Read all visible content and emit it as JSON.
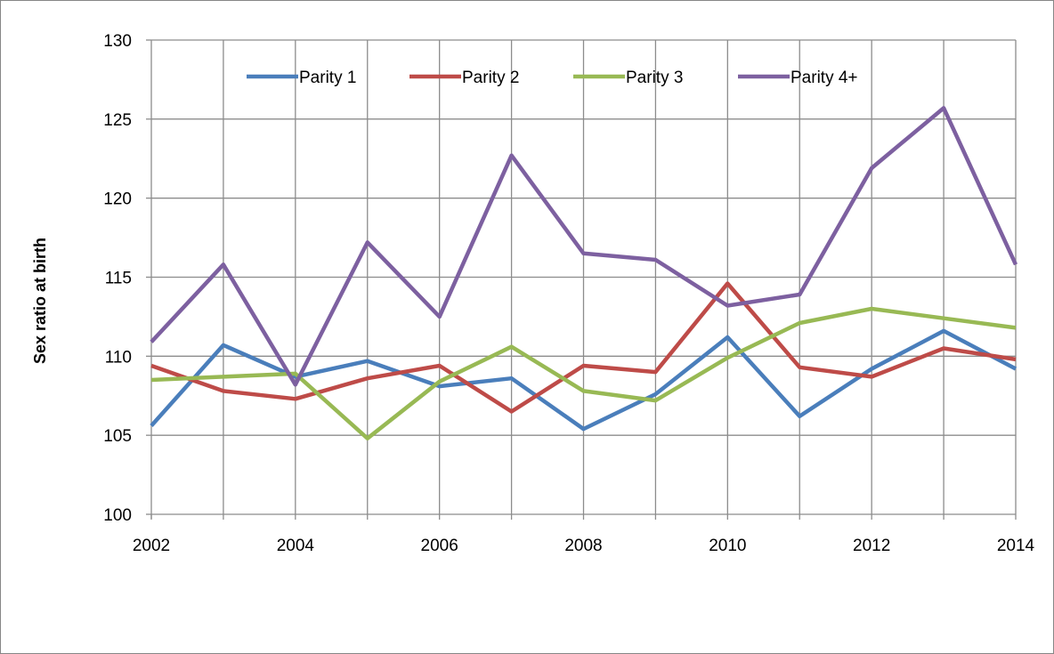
{
  "chart_data": {
    "type": "line",
    "title": "",
    "xlabel": "",
    "ylabel": "Sex ratio at birth",
    "x": [
      2002,
      2003,
      2004,
      2005,
      2006,
      2007,
      2008,
      2009,
      2010,
      2011,
      2012,
      2013,
      2014
    ],
    "x_ticks": [
      "2002",
      "2004",
      "2006",
      "2008",
      "2010",
      "2012",
      "2014"
    ],
    "y_ticks": [
      "100",
      "105",
      "110",
      "115",
      "120",
      "125",
      "130"
    ],
    "xlim": [
      2002,
      2014
    ],
    "ylim": [
      100,
      130
    ],
    "grid": "on",
    "legend_position": "top",
    "series": [
      {
        "name": "Parity 1",
        "color": "#4a7ebb",
        "values": [
          105.6,
          110.7,
          108.7,
          109.7,
          108.1,
          108.6,
          105.4,
          107.6,
          111.2,
          106.2,
          109.2,
          111.6,
          109.2
        ]
      },
      {
        "name": "Parity 2",
        "color": "#be4b48",
        "values": [
          109.4,
          107.8,
          107.3,
          108.6,
          109.4,
          106.5,
          109.4,
          109.0,
          114.6,
          109.3,
          108.7,
          110.5,
          109.8
        ]
      },
      {
        "name": "Parity 3",
        "color": "#98b954",
        "values": [
          108.5,
          108.7,
          108.9,
          104.8,
          108.4,
          110.6,
          107.8,
          107.2,
          109.9,
          112.1,
          113.0,
          112.4,
          111.8
        ]
      },
      {
        "name": "Parity 4+",
        "color": "#7d60a0",
        "values": [
          110.9,
          115.8,
          108.2,
          117.2,
          112.5,
          122.7,
          116.5,
          116.1,
          113.2,
          113.9,
          121.9,
          125.7,
          115.8
        ]
      }
    ]
  }
}
